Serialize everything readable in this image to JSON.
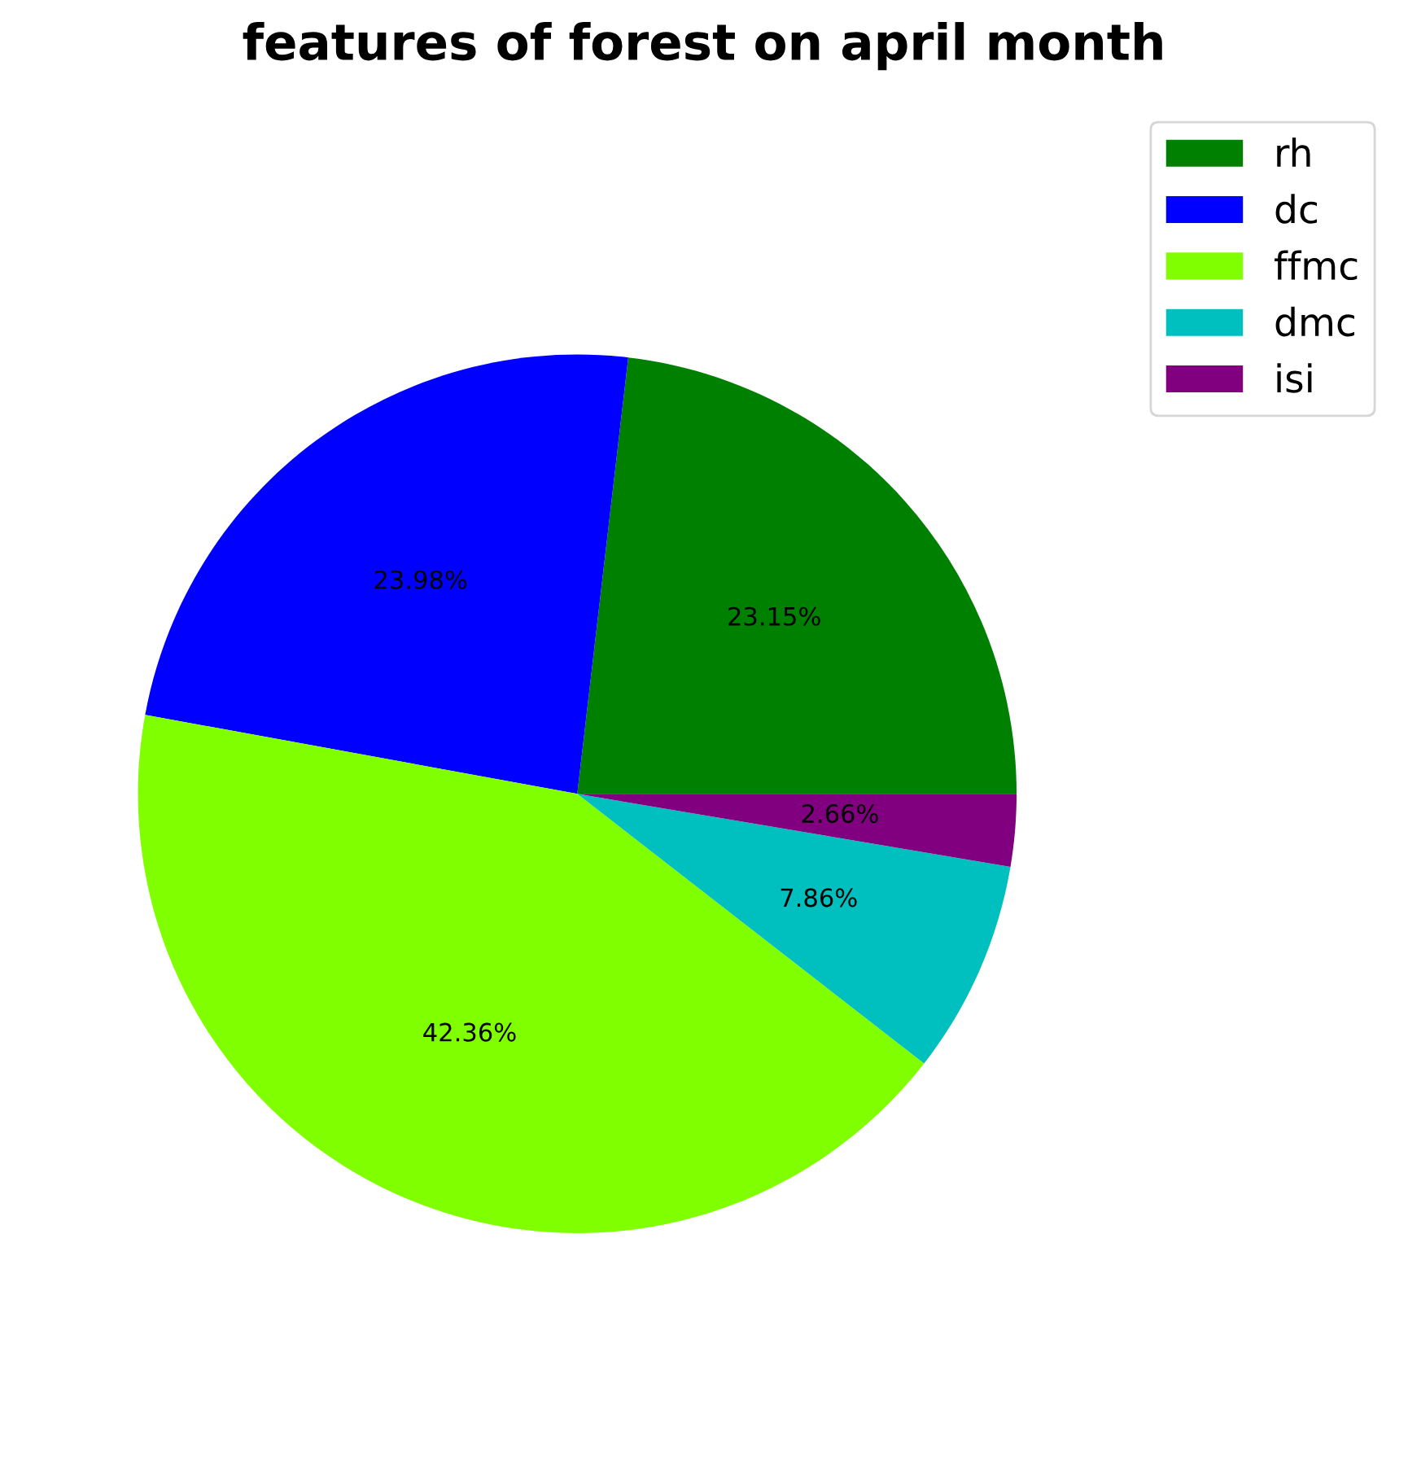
{
  "chart_data": {
    "type": "pie",
    "title": "features of forest on april month",
    "categories": [
      "rh",
      "dc",
      "ffmc",
      "dmc",
      "isi"
    ],
    "values": [
      23.15,
      23.98,
      42.36,
      7.86,
      2.66
    ],
    "colors": [
      "#008000",
      "#0000ff",
      "#7fff00",
      "#00bfbf",
      "#800080"
    ],
    "value_labels": [
      "23.15%",
      "23.98%",
      "42.36%",
      "7.86%",
      "2.66%"
    ],
    "legend": "top right"
  }
}
